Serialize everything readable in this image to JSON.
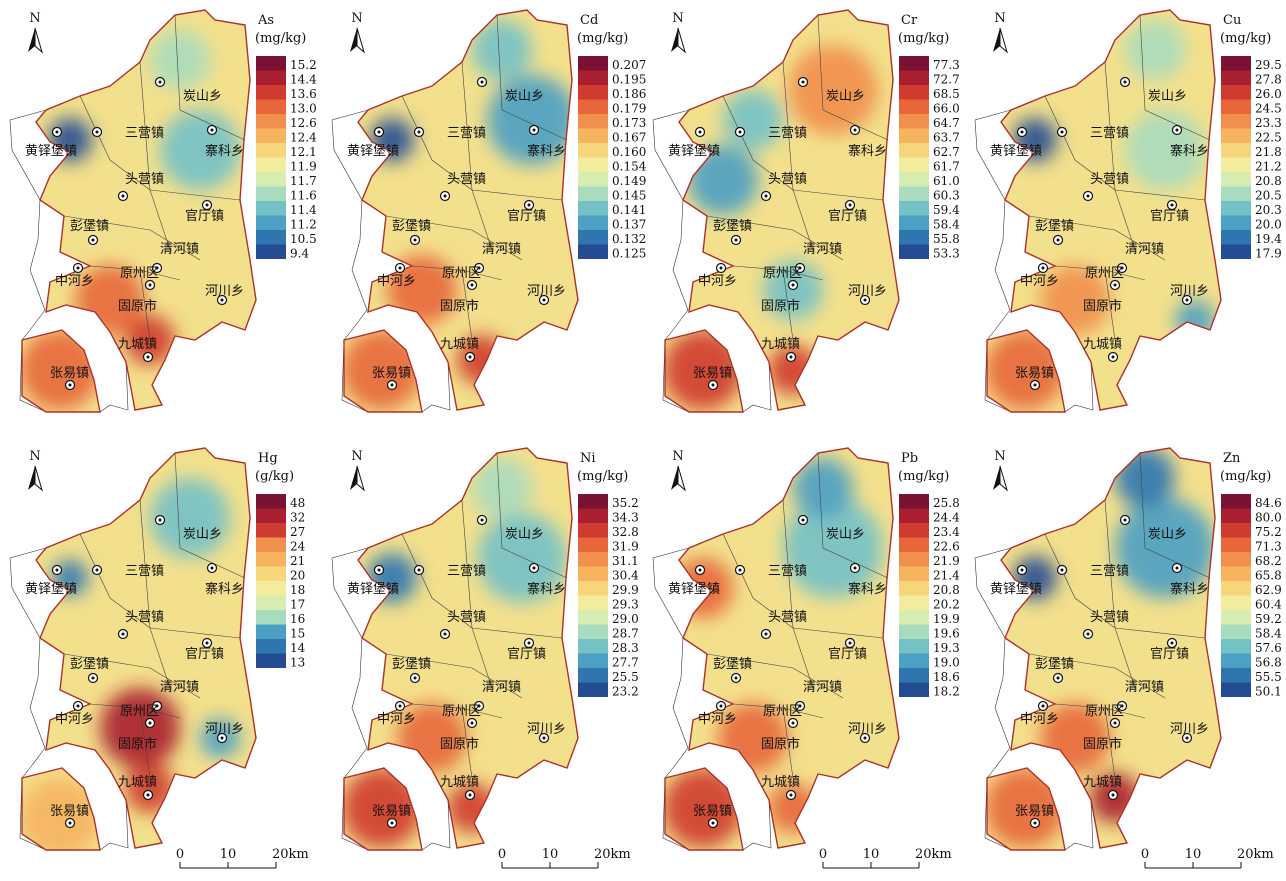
{
  "north": "N",
  "scale_bar": [
    "0",
    "10",
    "20km"
  ],
  "places": [
    "炭山乡",
    "三营镇",
    "黄铎堡镇",
    "寨科乡",
    "头营镇",
    "官厅镇",
    "彭堡镇",
    "清河镇",
    "中河乡",
    "原州区",
    "固原市",
    "河川乡",
    "九城镇",
    "张易镇"
  ],
  "panels": [
    {
      "element": "As",
      "unit": "(mg/kg)",
      "legend": [
        "15.2",
        "14.4",
        "13.6",
        "13.0",
        "12.6",
        "12.4",
        "12.1",
        "11.9",
        "11.7",
        "11.6",
        "11.4",
        "11.2",
        "10.5",
        "9.4"
      ]
    },
    {
      "element": "Cd",
      "unit": "(mg/kg)",
      "legend": [
        "0.207",
        "0.195",
        "0.186",
        "0.179",
        "0.173",
        "0.167",
        "0.160",
        "0.154",
        "0.149",
        "0.145",
        "0.141",
        "0.137",
        "0.132",
        "0.125"
      ]
    },
    {
      "element": "Cr",
      "unit": "(mg/kg)",
      "legend": [
        "77.3",
        "72.7",
        "68.5",
        "66.0",
        "64.7",
        "63.7",
        "62.7",
        "61.7",
        "61.0",
        "60.3",
        "59.4",
        "58.4",
        "55.8",
        "53.3"
      ]
    },
    {
      "element": "Cu",
      "unit": "(mg/kg)",
      "legend": [
        "29.5",
        "27.8",
        "26.0",
        "24.5",
        "23.3",
        "22.5",
        "21.8",
        "21.2",
        "20.8",
        "20.5",
        "20.3",
        "20.0",
        "19.4",
        "17.9"
      ]
    },
    {
      "element": "Hg",
      "unit": "(g/kg)",
      "legend": [
        "48",
        "32",
        "27",
        "24",
        "21",
        "20",
        "18",
        "17",
        "16",
        "15",
        "14",
        "13"
      ]
    },
    {
      "element": "Ni",
      "unit": "(mg/kg)",
      "legend": [
        "35.2",
        "34.3",
        "32.8",
        "31.9",
        "31.1",
        "30.4",
        "29.9",
        "29.3",
        "29.0",
        "28.7",
        "28.3",
        "27.7",
        "25.5",
        "23.2"
      ]
    },
    {
      "element": "Pb",
      "unit": "(mg/kg)",
      "legend": [
        "25.8",
        "24.4",
        "23.4",
        "22.6",
        "21.9",
        "21.4",
        "20.8",
        "20.2",
        "19.9",
        "19.6",
        "19.3",
        "19.0",
        "18.6",
        "18.2"
      ]
    },
    {
      "element": "Zn",
      "unit": "(mg/kg)",
      "legend": [
        "84.6",
        "80.0",
        "75.2",
        "71.3",
        "68.2",
        "65.8",
        "62.9",
        "60.4",
        "59.2",
        "58.4",
        "57.6",
        "56.8",
        "55.5",
        "50.1"
      ]
    }
  ]
}
